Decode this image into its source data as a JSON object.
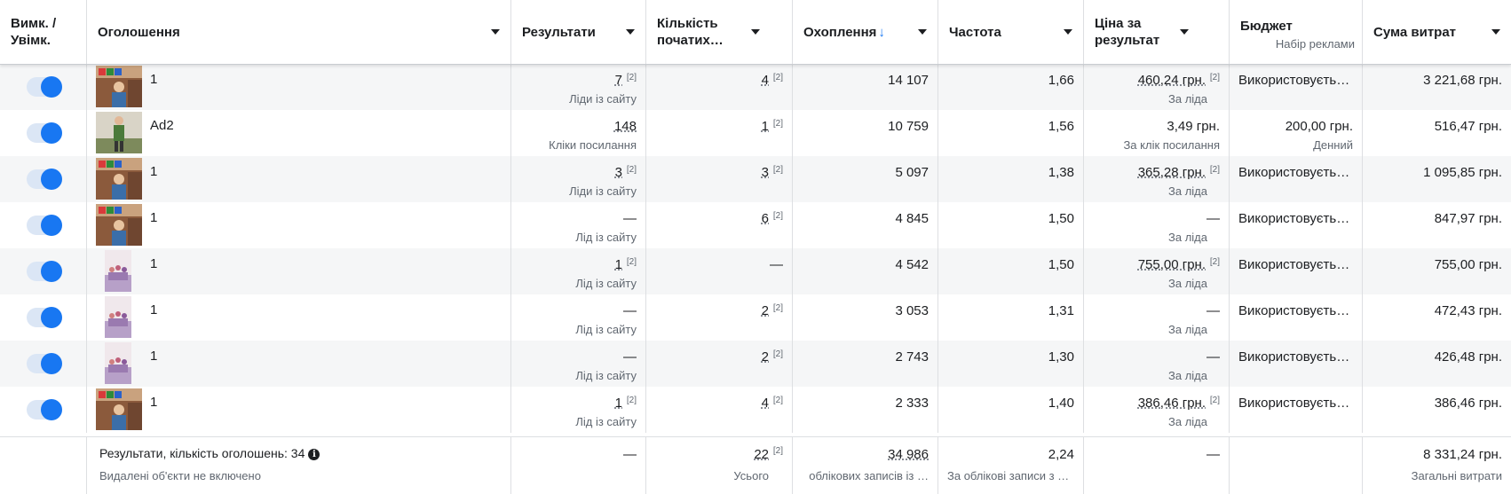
{
  "columns": {
    "toggle": "Вимк. / Увімк.",
    "ad": "Оголошення",
    "results": "Результати",
    "initiated": "Кількість початих…",
    "reach": "Охоплення",
    "reach_sort_icon": "↓",
    "frequency": "Частота",
    "cost_per_result": "Ціна за результат",
    "budget": "Бюджет",
    "budget_sub": "Набір реклами",
    "spent": "Сума витрат"
  },
  "superscript": "[2]",
  "rows": [
    {
      "name": "1",
      "thumb": "wide",
      "results": "7",
      "results_sub": "Ліди із сайту",
      "initiated": "4",
      "reach": "14 107",
      "frequency": "1,66",
      "cpr": "460,24 грн.",
      "cpr_sub": "За ліда",
      "budget": "Використовуєть…",
      "budget_sub": "",
      "spent": "3 221,68 грн."
    },
    {
      "name": "Ad2",
      "thumb": "person",
      "results": "148",
      "results_sub": "Кліки посилання",
      "initiated": "1",
      "reach": "10 759",
      "frequency": "1,56",
      "cpr": "3,49 грн.",
      "cpr_sub": "За клік посилання",
      "budget": "200,00 грн.",
      "budget_sub": "Денний",
      "spent": "516,47 грн."
    },
    {
      "name": "1",
      "thumb": "wide",
      "results": "3",
      "results_sub": "Ліди із сайту",
      "initiated": "3",
      "reach": "5 097",
      "frequency": "1,38",
      "cpr": "365,28 грн.",
      "cpr_sub": "За ліда",
      "budget": "Використовуєть…",
      "budget_sub": "",
      "spent": "1 095,85 грн."
    },
    {
      "name": "1",
      "thumb": "wide",
      "results": "—",
      "results_sub": "Лід із сайту",
      "initiated": "6",
      "reach": "4 845",
      "frequency": "1,50",
      "cpr": "—",
      "cpr_sub": "За ліда",
      "budget": "Використовуєть…",
      "budget_sub": "",
      "spent": "847,97 грн."
    },
    {
      "name": "1",
      "thumb": "small",
      "results": "1",
      "results_sub": "Лід із сайту",
      "initiated": "—",
      "reach": "4 542",
      "frequency": "1,50",
      "cpr": "755,00 грн.",
      "cpr_sub": "За ліда",
      "budget": "Використовуєть…",
      "budget_sub": "",
      "spent": "755,00 грн."
    },
    {
      "name": "1",
      "thumb": "small",
      "results": "—",
      "results_sub": "Лід із сайту",
      "initiated": "2",
      "reach": "3 053",
      "frequency": "1,31",
      "cpr": "—",
      "cpr_sub": "За ліда",
      "budget": "Використовуєть…",
      "budget_sub": "",
      "spent": "472,43 грн."
    },
    {
      "name": "1",
      "thumb": "small",
      "results": "—",
      "results_sub": "Лід із сайту",
      "initiated": "2",
      "reach": "2 743",
      "frequency": "1,30",
      "cpr": "—",
      "cpr_sub": "За ліда",
      "budget": "Використовуєть…",
      "budget_sub": "",
      "spent": "426,48 грн."
    },
    {
      "name": "1",
      "thumb": "wide",
      "results": "1",
      "results_sub": "Лід із сайту",
      "initiated": "4",
      "reach": "2 333",
      "frequency": "1,40",
      "cpr": "386,46 грн.",
      "cpr_sub": "За ліда",
      "budget": "Використовуєть…",
      "budget_sub": "",
      "spent": "386,46 грн."
    }
  ],
  "footer": {
    "title": "Результати, кількість оголошень: 34",
    "subtitle": "Видалені об'єкти не включено",
    "results": "—",
    "initiated": "22",
    "initiated_sub": "Усього",
    "reach": "34 986",
    "reach_sub": "облікових записів із …",
    "frequency": "2,24",
    "frequency_sub": "За облікові записи з …",
    "cpr": "—",
    "spent": "8 331,24 грн.",
    "spent_sub": "Загальні витрати"
  },
  "colors": {
    "accent": "#1877f2",
    "toggle_track": "#dbe6f5",
    "row_alt": "#f5f6f7",
    "border": "#dddfe2"
  }
}
